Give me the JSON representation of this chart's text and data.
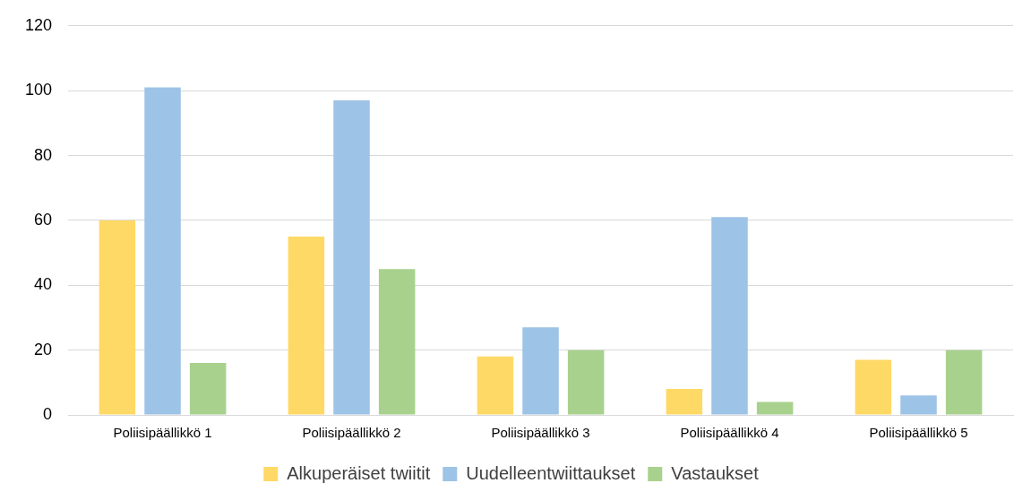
{
  "chart_data": {
    "type": "bar",
    "categories": [
      "Poliisipäällikkö 1",
      "Poliisipäällikkö 2",
      "Poliisipäällikkö 3",
      "Poliisipäällikkö 4",
      "Poliisipäällikkö 5"
    ],
    "series": [
      {
        "name": "Alkuperäiset twiitit",
        "color": "#ffd966",
        "values": [
          60,
          55,
          18,
          8,
          17
        ]
      },
      {
        "name": "Uudelleentwiittaukset",
        "color": "#9dc3e6",
        "values": [
          101,
          97,
          27,
          61,
          6
        ]
      },
      {
        "name": "Vastaukset",
        "color": "#a9d18e",
        "values": [
          16,
          45,
          20,
          4,
          20
        ]
      }
    ],
    "ylim": [
      0,
      120
    ],
    "yticks": [
      0,
      20,
      40,
      60,
      80,
      100,
      120
    ],
    "grid": "y",
    "legend": "bottom"
  }
}
